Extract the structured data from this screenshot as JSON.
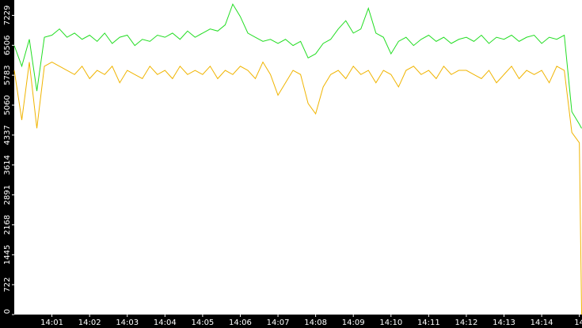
{
  "chart_data": {
    "type": "line",
    "x": [
      840,
      840.2,
      840.4,
      840.6,
      840.8,
      841,
      841.2,
      841.4,
      841.6,
      841.8,
      842,
      842.2,
      842.4,
      842.6,
      842.8,
      843,
      843.2,
      843.4,
      843.6,
      843.8,
      844,
      844.2,
      844.4,
      844.6,
      844.8,
      845,
      845.2,
      845.4,
      845.6,
      845.8,
      846,
      846.2,
      846.4,
      846.6,
      846.8,
      847,
      847.2,
      847.4,
      847.6,
      847.8,
      848,
      848.2,
      848.4,
      848.6,
      848.8,
      849,
      849.2,
      849.4,
      849.6,
      849.8,
      850,
      850.2,
      850.4,
      850.6,
      850.8,
      851,
      851.2,
      851.4,
      851.6,
      851.8,
      852,
      852.2,
      852.4,
      852.6,
      852.8,
      853,
      853.2,
      853.4,
      853.6,
      853.8,
      854,
      854.2,
      854.4,
      854.6,
      854.8,
      855,
      855.06
    ],
    "series": [
      {
        "color": "#22dd22",
        "values": [
          6500,
          6000,
          6650,
          5400,
          6700,
          6750,
          6900,
          6700,
          6800,
          6650,
          6750,
          6600,
          6800,
          6550,
          6700,
          6750,
          6500,
          6650,
          6600,
          6750,
          6700,
          6800,
          6650,
          6850,
          6700,
          6800,
          6900,
          6850,
          7000,
          7500,
          7200,
          6800,
          6700,
          6600,
          6650,
          6550,
          6650,
          6500,
          6600,
          6200,
          6300,
          6550,
          6650,
          6900,
          7100,
          6800,
          6900,
          7400,
          6800,
          6700,
          6300,
          6600,
          6700,
          6500,
          6650,
          6750,
          6600,
          6700,
          6550,
          6650,
          6700,
          6600,
          6750,
          6550,
          6700,
          6650,
          6750,
          6600,
          6700,
          6750,
          6550,
          6700,
          6650,
          6750,
          4900,
          4600,
          4500
        ]
      },
      {
        "color": "#f0b400",
        "values": [
          5900,
          4700,
          6100,
          4500,
          6000,
          6100,
          6000,
          5900,
          5800,
          6000,
          5700,
          5900,
          5800,
          6000,
          5600,
          5900,
          5800,
          5700,
          6000,
          5800,
          5900,
          5700,
          6000,
          5800,
          5900,
          5800,
          6000,
          5700,
          5900,
          5800,
          6000,
          5900,
          5700,
          6100,
          5800,
          5300,
          5600,
          5900,
          5800,
          5100,
          4850,
          5500,
          5800,
          5900,
          5700,
          6000,
          5800,
          5900,
          5600,
          5900,
          5800,
          5500,
          5900,
          6000,
          5800,
          5900,
          5700,
          6000,
          5800,
          5900,
          5900,
          5800,
          5700,
          5900,
          5600,
          5800,
          6000,
          5700,
          5900,
          5800,
          5900,
          5600,
          6000,
          5900,
          4400,
          4150,
          0
        ]
      }
    ],
    "xlim": [
      840,
      855.07
    ],
    "ylim": [
      0,
      7600
    ],
    "xticks": [
      {
        "value": 841,
        "label": "14:01"
      },
      {
        "value": 842,
        "label": "14:02"
      },
      {
        "value": 843,
        "label": "14:03"
      },
      {
        "value": 844,
        "label": "14:04"
      },
      {
        "value": 845,
        "label": "14:05"
      },
      {
        "value": 846,
        "label": "14:06"
      },
      {
        "value": 847,
        "label": "14:07"
      },
      {
        "value": 848,
        "label": "14:08"
      },
      {
        "value": 849,
        "label": "14:09"
      },
      {
        "value": 850,
        "label": "14:10"
      },
      {
        "value": 851,
        "label": "14:11"
      },
      {
        "value": 852,
        "label": "14:12"
      },
      {
        "value": 853,
        "label": "14:13"
      },
      {
        "value": 854,
        "label": "14:14"
      },
      {
        "value": 855,
        "label": "14"
      }
    ],
    "yticks": [
      0,
      722,
      1445,
      2168,
      2891,
      3614,
      4337,
      5060,
      5783,
      6506,
      7229
    ]
  }
}
